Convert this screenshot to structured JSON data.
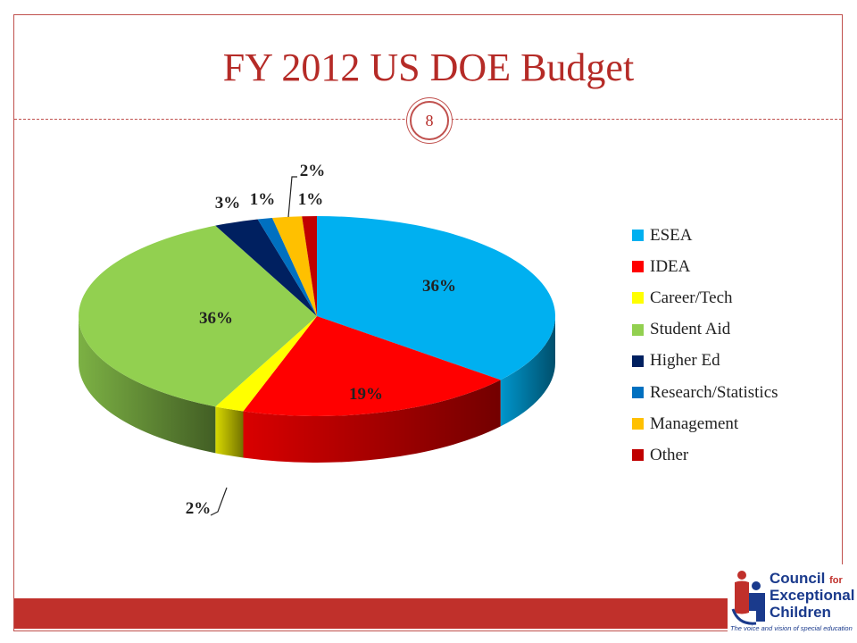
{
  "slide": {
    "title": "FY 2012 US DOE Budget",
    "page_number": "8"
  },
  "logo": {
    "line1": "Council",
    "line1_small": "for",
    "line2": "Exceptional",
    "line3": "Children",
    "tagline": "The voice and vision of special education"
  },
  "chart_data": {
    "type": "pie",
    "title": "FY 2012 US DOE Budget",
    "legend_position": "right",
    "categories": [
      "ESEA",
      "IDEA",
      "Career/Tech",
      "Student Aid",
      "Higher Ed",
      "Research/Statistics",
      "Management",
      "Other"
    ],
    "values": [
      36,
      19,
      2,
      36,
      3,
      1,
      2,
      1
    ],
    "labels": [
      "36%",
      "19%",
      "2%",
      "36%",
      "3%",
      "1%",
      "2%",
      "1%"
    ],
    "colors": [
      "#00b0f0",
      "#ff0000",
      "#ffff00",
      "#92d050",
      "#002060",
      "#0070c0",
      "#ffc000",
      "#c00000"
    ],
    "style": "3d"
  }
}
